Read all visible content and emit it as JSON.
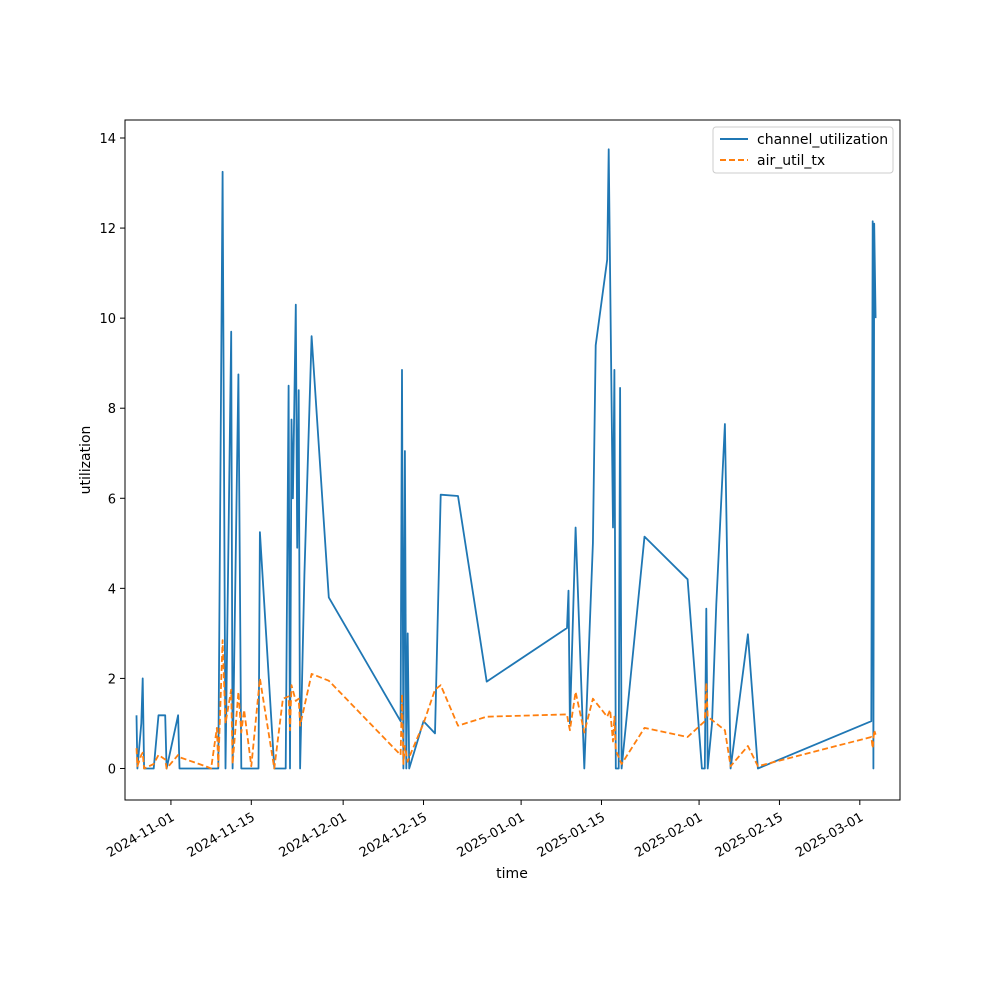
{
  "chart_data": {
    "type": "line",
    "title": "",
    "xlabel": "time",
    "ylabel": "utilization",
    "x_axis_type": "date",
    "xlim": [
      "2024-10-24",
      "2025-03-08"
    ],
    "ylim": [
      -0.7,
      14.4
    ],
    "x_ticks": [
      "2024-11-01",
      "2024-11-15",
      "2024-12-01",
      "2024-12-15",
      "2025-01-01",
      "2025-01-15",
      "2025-02-01",
      "2025-02-15",
      "2025-03-01"
    ],
    "y_ticks": [
      0,
      2,
      4,
      6,
      8,
      10,
      12,
      14
    ],
    "grid": false,
    "legend_position": "upper right",
    "series": [
      {
        "name": "channel_utilization",
        "color": "#1f77b4",
        "style": "solid",
        "points": [
          [
            "2024-10-26T00:00",
            1.18
          ],
          [
            "2024-10-26T04:00",
            0.0
          ],
          [
            "2024-10-26T20:00",
            1.0
          ],
          [
            "2024-10-27T02:00",
            2.0
          ],
          [
            "2024-10-27T08:00",
            0.0
          ],
          [
            "2024-10-28T12:00",
            0.0
          ],
          [
            "2024-10-29T00:00",
            0.0
          ],
          [
            "2024-10-29T20:00",
            1.18
          ],
          [
            "2024-10-31T00:00",
            1.18
          ],
          [
            "2024-10-31T06:00",
            0.0
          ],
          [
            "2024-11-02T06:00",
            1.18
          ],
          [
            "2024-11-02T12:00",
            0.0
          ],
          [
            "2024-11-05T00:00",
            0.0
          ],
          [
            "2024-11-08T00:00",
            0.0
          ],
          [
            "2024-11-09T06:00",
            0.0
          ],
          [
            "2024-11-10T00:00",
            13.25
          ],
          [
            "2024-11-10T12:00",
            0.0
          ],
          [
            "2024-11-11T12:00",
            9.7
          ],
          [
            "2024-11-11T18:00",
            0.0
          ],
          [
            "2024-11-12T18:00",
            8.75
          ],
          [
            "2024-11-13T06:00",
            0.0
          ],
          [
            "2024-11-15T00:00",
            0.0
          ],
          [
            "2024-11-16T06:00",
            0.0
          ],
          [
            "2024-11-16T12:00",
            5.25
          ],
          [
            "2024-11-19T00:00",
            0.0
          ],
          [
            "2024-11-21T00:00",
            0.0
          ],
          [
            "2024-11-21T12:00",
            8.5
          ],
          [
            "2024-11-21T18:00",
            0.0
          ],
          [
            "2024-11-22T00:00",
            7.75
          ],
          [
            "2024-11-22T06:00",
            6.0
          ],
          [
            "2024-11-22T18:00",
            10.3
          ],
          [
            "2024-11-23T00:00",
            4.9
          ],
          [
            "2024-11-23T06:00",
            8.4
          ],
          [
            "2024-11-23T12:00",
            0.0
          ],
          [
            "2024-11-24T06:00",
            4.3
          ],
          [
            "2024-11-25T12:00",
            9.6
          ],
          [
            "2024-11-28T12:00",
            3.8
          ],
          [
            "2024-12-11T00:00",
            1.05
          ],
          [
            "2024-12-11T06:00",
            8.85
          ],
          [
            "2024-12-11T12:00",
            0.0
          ],
          [
            "2024-12-11T18:00",
            7.05
          ],
          [
            "2024-12-12T00:00",
            0.0
          ],
          [
            "2024-12-12T06:00",
            3.0
          ],
          [
            "2024-12-12T12:00",
            0.0
          ],
          [
            "2024-12-15T00:00",
            1.05
          ],
          [
            "2024-12-17T00:00",
            0.78
          ],
          [
            "2024-12-18T00:00",
            6.08
          ],
          [
            "2024-12-21T00:00",
            6.05
          ],
          [
            "2024-12-26T00:00",
            1.93
          ],
          [
            "2025-01-09T00:00",
            3.12
          ],
          [
            "2025-01-09T06:00",
            3.95
          ],
          [
            "2025-01-09T12:00",
            1.0
          ],
          [
            "2025-01-10T12:00",
            5.35
          ],
          [
            "2025-01-12T00:00",
            0.0
          ],
          [
            "2025-01-13T12:00",
            5.0
          ],
          [
            "2025-01-14T00:00",
            9.4
          ],
          [
            "2025-01-16T00:00",
            11.3
          ],
          [
            "2025-01-16T06:00",
            13.75
          ],
          [
            "2025-01-16T12:00",
            11.0
          ],
          [
            "2025-01-17T00:00",
            5.35
          ],
          [
            "2025-01-17T06:00",
            8.85
          ],
          [
            "2025-01-17T12:00",
            0.0
          ],
          [
            "2025-01-18T00:00",
            0.0
          ],
          [
            "2025-01-18T06:00",
            8.45
          ],
          [
            "2025-01-18T12:00",
            0.0
          ],
          [
            "2025-01-22T12:00",
            5.15
          ],
          [
            "2025-01-30T00:00",
            4.2
          ],
          [
            "2025-02-01T12:00",
            0.0
          ],
          [
            "2025-02-02T00:00",
            0.0
          ],
          [
            "2025-02-02T06:00",
            3.55
          ],
          [
            "2025-02-02T12:00",
            0.0
          ],
          [
            "2025-02-03T06:00",
            1.0
          ],
          [
            "2025-02-04T00:00",
            3.65
          ],
          [
            "2025-02-05T12:00",
            7.65
          ],
          [
            "2025-02-06T12:00",
            0.0
          ],
          [
            "2025-02-09T12:00",
            2.98
          ],
          [
            "2025-02-11T06:00",
            0.0
          ],
          [
            "2025-03-03T00:00",
            1.05
          ],
          [
            "2025-03-03T06:00",
            12.15
          ],
          [
            "2025-03-03T09:00",
            0.0
          ],
          [
            "2025-03-03T12:00",
            12.1
          ],
          [
            "2025-03-03T18:00",
            10.0
          ]
        ]
      },
      {
        "name": "air_util_tx",
        "color": "#ff7f0e",
        "style": "dashed",
        "points": [
          [
            "2024-10-26T00:00",
            0.45
          ],
          [
            "2024-10-26T04:00",
            0.05
          ],
          [
            "2024-10-26T20:00",
            0.3
          ],
          [
            "2024-10-27T02:00",
            0.35
          ],
          [
            "2024-10-27T08:00",
            0.0
          ],
          [
            "2024-10-29T00:00",
            0.1
          ],
          [
            "2024-10-29T20:00",
            0.3
          ],
          [
            "2024-10-31T00:00",
            0.2
          ],
          [
            "2024-10-31T06:00",
            0.0
          ],
          [
            "2024-11-02T06:00",
            0.3
          ],
          [
            "2024-11-02T12:00",
            0.25
          ],
          [
            "2024-11-07T00:00",
            0.05
          ],
          [
            "2024-11-08T00:00",
            0.0
          ],
          [
            "2024-11-09T00:00",
            0.9
          ],
          [
            "2024-11-09T06:00",
            0.05
          ],
          [
            "2024-11-10T00:00",
            2.85
          ],
          [
            "2024-11-10T12:00",
            1.0
          ],
          [
            "2024-11-11T12:00",
            1.75
          ],
          [
            "2024-11-11T18:00",
            0.1
          ],
          [
            "2024-11-12T18:00",
            1.7
          ],
          [
            "2024-11-13T06:00",
            0.8
          ],
          [
            "2024-11-13T18:00",
            1.3
          ],
          [
            "2024-11-15T00:00",
            0.05
          ],
          [
            "2024-11-16T12:00",
            2.0
          ],
          [
            "2024-11-19T00:00",
            0.0
          ],
          [
            "2024-11-20T12:00",
            1.55
          ],
          [
            "2024-11-21T12:00",
            1.6
          ],
          [
            "2024-11-21T18:00",
            0.85
          ],
          [
            "2024-11-22T00:00",
            1.85
          ],
          [
            "2024-11-22T18:00",
            1.5
          ],
          [
            "2024-11-23T06:00",
            1.55
          ],
          [
            "2024-11-23T12:00",
            0.95
          ],
          [
            "2024-11-25T12:00",
            2.1
          ],
          [
            "2024-11-28T12:00",
            1.95
          ],
          [
            "2024-12-11T00:00",
            0.3
          ],
          [
            "2024-12-11T06:00",
            1.65
          ],
          [
            "2024-12-11T12:00",
            0.1
          ],
          [
            "2024-12-11T18:00",
            0.5
          ],
          [
            "2024-12-12T06:00",
            0.15
          ],
          [
            "2024-12-12T12:00",
            0.25
          ],
          [
            "2024-12-15T00:00",
            1.0
          ],
          [
            "2024-12-17T00:00",
            1.75
          ],
          [
            "2024-12-18T00:00",
            1.85
          ],
          [
            "2024-12-21T00:00",
            0.95
          ],
          [
            "2024-12-26T00:00",
            1.15
          ],
          [
            "2025-01-09T00:00",
            1.2
          ],
          [
            "2025-01-09T06:00",
            1.0
          ],
          [
            "2025-01-09T12:00",
            0.85
          ],
          [
            "2025-01-10T12:00",
            1.7
          ],
          [
            "2025-01-12T00:00",
            0.8
          ],
          [
            "2025-01-13T12:00",
            1.55
          ],
          [
            "2025-01-16T00:00",
            1.15
          ],
          [
            "2025-01-16T12:00",
            1.3
          ],
          [
            "2025-01-17T00:00",
            0.6
          ],
          [
            "2025-01-17T06:00",
            1.15
          ],
          [
            "2025-01-17T12:00",
            0.4
          ],
          [
            "2025-01-18T12:00",
            0.1
          ],
          [
            "2025-01-22T12:00",
            0.9
          ],
          [
            "2025-01-30T00:00",
            0.7
          ],
          [
            "2025-02-02T00:00",
            1.05
          ],
          [
            "2025-02-02T06:00",
            1.9
          ],
          [
            "2025-02-02T12:00",
            1.15
          ],
          [
            "2025-02-05T12:00",
            0.85
          ],
          [
            "2025-02-06T12:00",
            0.05
          ],
          [
            "2025-02-09T12:00",
            0.5
          ],
          [
            "2025-02-11T06:00",
            0.05
          ],
          [
            "2025-03-03T00:00",
            0.7
          ],
          [
            "2025-03-03T06:00",
            0.45
          ],
          [
            "2025-03-03T12:00",
            0.85
          ],
          [
            "2025-03-03T18:00",
            0.75
          ]
        ]
      }
    ]
  }
}
